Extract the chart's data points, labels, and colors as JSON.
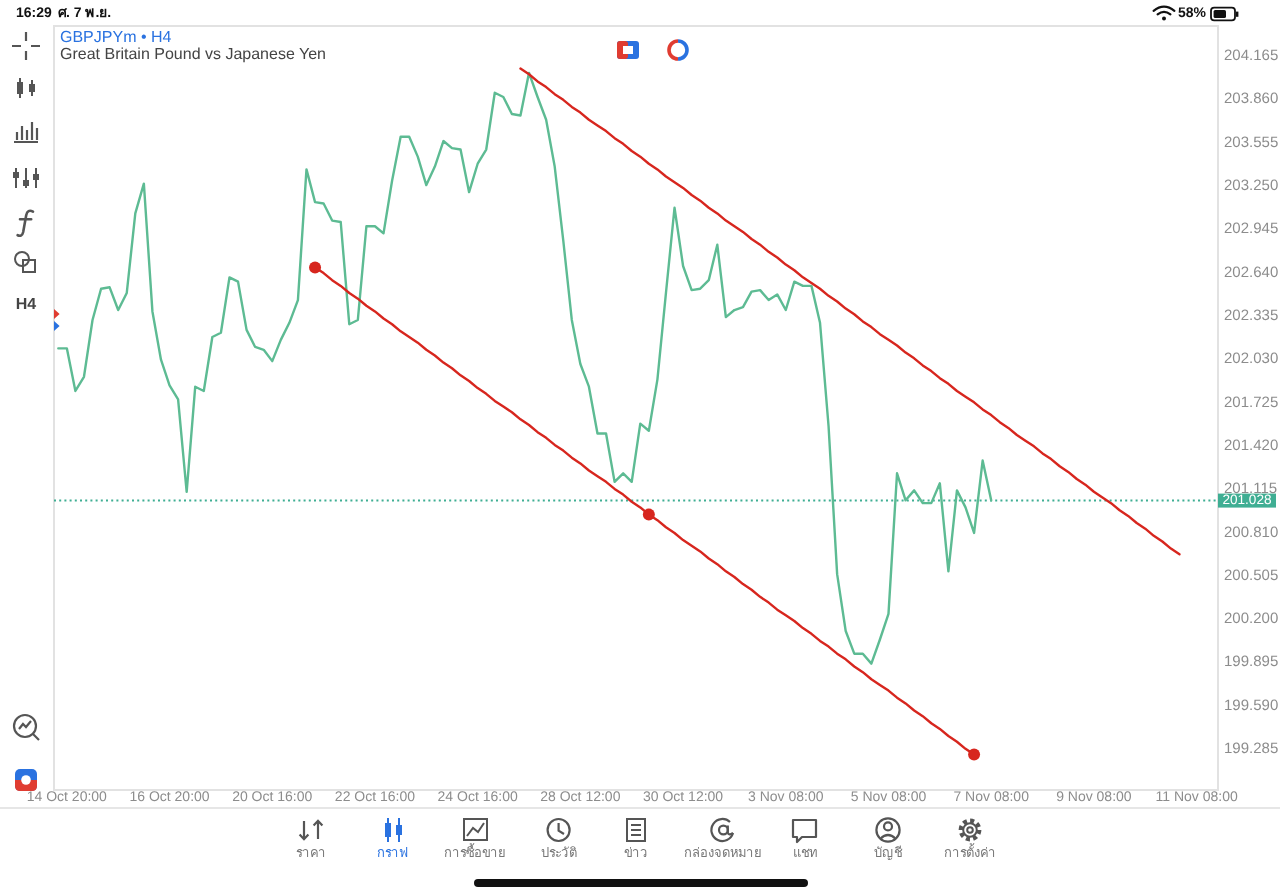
{
  "chart_data": {
    "type": "line",
    "title": "GBPJPYm • H4",
    "subtitle": "Great Britain Pound vs Japanese Yen",
    "categories": [
      null,
      "14 Oct 20:00",
      null,
      null,
      null,
      null,
      null,
      null,
      null,
      null,
      null,
      null,
      null,
      "16 Oct 20:00",
      null,
      null,
      null,
      null,
      null,
      null,
      null,
      null,
      null,
      null,
      null,
      "20 Oct 16:00",
      null,
      null,
      null,
      null,
      null,
      null,
      null,
      null,
      null,
      null,
      null,
      "22 Oct 16:00",
      null,
      null,
      null,
      null,
      null,
      null,
      null,
      null,
      null,
      null,
      null,
      "24 Oct 16:00",
      null,
      null,
      null,
      null,
      null,
      null,
      null,
      null,
      null,
      null,
      null,
      "28 Oct 12:00",
      null,
      null,
      null,
      null,
      null,
      null,
      null,
      null,
      null,
      null,
      null,
      "30 Oct 12:00",
      null,
      null,
      null,
      null,
      null,
      null,
      null,
      null,
      null,
      null,
      null,
      "3 Nov 08:00",
      null,
      null,
      null,
      null,
      null,
      null,
      null,
      null,
      null,
      null,
      null,
      "5 Nov 08:00",
      null,
      null,
      null,
      null,
      null,
      null,
      null,
      null,
      null,
      null,
      null,
      "7 Nov 08:00",
      null,
      null,
      null,
      null,
      null,
      null,
      null,
      null,
      null,
      null,
      null,
      "9 Nov 08:00",
      null,
      null,
      null,
      null,
      null,
      null,
      null,
      null,
      null,
      null,
      null,
      "11 Nov 08:00",
      null,
      null
    ],
    "series": [
      {
        "color": "#5dbb93",
        "values": [
          202.1,
          202.1,
          201.8,
          201.9,
          202.3,
          202.52,
          202.53,
          202.37,
          202.49,
          203.05,
          203.26,
          202.36,
          202.02,
          201.84,
          201.74,
          201.09,
          201.83,
          201.8,
          202.18,
          202.21,
          202.6,
          202.57,
          202.23,
          202.11,
          202.09,
          202.01,
          202.16,
          202.28,
          202.44,
          203.36,
          203.13,
          203.12,
          203.0,
          202.99,
          202.27,
          202.3,
          202.96,
          202.96,
          202.91,
          203.28,
          203.59,
          203.59,
          203.45,
          203.25,
          203.38,
          203.56,
          203.51,
          203.5,
          203.2,
          203.4,
          203.5,
          203.9,
          203.87,
          203.75,
          203.74,
          204.04,
          203.87,
          203.71,
          203.38,
          202.86,
          202.3,
          201.99,
          201.83,
          201.5,
          201.5,
          201.16,
          201.22,
          201.16,
          201.57,
          201.52,
          201.88,
          202.49,
          203.09,
          202.68,
          202.51,
          202.52,
          202.58,
          202.83,
          202.32,
          202.37,
          202.39,
          202.5,
          202.51,
          202.44,
          202.48,
          202.37,
          202.57,
          202.54,
          202.54,
          202.28,
          201.55,
          200.51,
          200.11,
          199.95,
          199.95,
          199.88,
          200.05,
          200.23,
          201.22,
          201.03,
          201.1,
          201.01,
          201.01,
          201.15,
          200.53,
          201.1,
          200.98,
          200.8,
          201.31,
          201.03,
          null,
          null,
          null,
          null,
          null,
          null,
          null,
          null,
          null,
          null,
          null,
          null,
          null,
          null,
          null,
          null,
          null,
          null,
          null,
          null,
          null,
          null,
          null,
          null,
          null,
          null
        ]
      },
      {
        "color": "#d7261e",
        "values": [
          null,
          null,
          null,
          null,
          null,
          null,
          null,
          null,
          null,
          null,
          null,
          null,
          null,
          null,
          null,
          null,
          null,
          null,
          null,
          null,
          null,
          null,
          null,
          null,
          null,
          null,
          null,
          null,
          null,
          null,
          null,
          null,
          null,
          null,
          null,
          null,
          null,
          null,
          null,
          null,
          null,
          null,
          null,
          null,
          null,
          null,
          null,
          null,
          null,
          null,
          null,
          null,
          null,
          null,
          204.07,
          204.03,
          203.98,
          203.94,
          203.89,
          203.85,
          203.8,
          203.76,
          203.71,
          203.67,
          203.63,
          203.58,
          203.54,
          203.49,
          203.45,
          203.4,
          203.36,
          203.31,
          203.27,
          203.23,
          203.18,
          203.14,
          203.09,
          203.05,
          203.0,
          202.96,
          202.92,
          202.87,
          202.83,
          202.78,
          202.74,
          202.69,
          202.65,
          202.6,
          202.56,
          202.52,
          202.47,
          202.43,
          202.38,
          202.34,
          202.29,
          202.25,
          202.2,
          202.16,
          202.12,
          202.07,
          202.03,
          201.98,
          201.94,
          201.89,
          201.85,
          201.8,
          201.76,
          201.72,
          201.67,
          201.63,
          201.58,
          201.54,
          201.49,
          201.45,
          201.41,
          201.36,
          201.32,
          201.27,
          201.23,
          201.18,
          201.14,
          201.09,
          201.05,
          201.01,
          200.96,
          200.92,
          200.87,
          200.83,
          200.78,
          200.74,
          200.69,
          200.65,
          null,
          null,
          null,
          null
        ]
      },
      {
        "color": "#d7261e",
        "values": [
          null,
          null,
          null,
          null,
          null,
          null,
          null,
          null,
          null,
          null,
          null,
          null,
          null,
          null,
          null,
          null,
          null,
          null,
          null,
          null,
          null,
          null,
          null,
          null,
          null,
          null,
          null,
          null,
          null,
          null,
          202.67,
          202.63,
          202.58,
          202.54,
          202.49,
          202.45,
          202.4,
          202.36,
          202.31,
          202.27,
          202.22,
          202.18,
          202.14,
          202.09,
          202.05,
          202.0,
          201.96,
          201.91,
          201.87,
          201.82,
          201.78,
          201.73,
          201.69,
          201.65,
          201.6,
          201.56,
          201.51,
          201.47,
          201.42,
          201.38,
          201.33,
          201.29,
          201.24,
          201.2,
          201.16,
          201.11,
          201.07,
          201.02,
          200.98,
          200.93,
          200.89,
          200.84,
          200.8,
          200.75,
          200.71,
          200.67,
          200.62,
          200.58,
          200.53,
          200.49,
          200.44,
          200.4,
          200.35,
          200.31,
          200.26,
          200.22,
          200.18,
          200.13,
          200.09,
          200.04,
          200.0,
          199.95,
          199.91,
          199.86,
          199.82,
          199.77,
          199.73,
          199.69,
          199.64,
          199.6,
          199.55,
          199.51,
          199.46,
          199.42,
          199.37,
          199.33,
          199.28,
          199.24,
          null,
          null,
          null,
          null,
          null,
          null,
          null,
          null,
          null,
          null,
          null,
          null,
          null,
          null,
          null,
          null,
          null,
          null,
          null,
          null,
          null,
          null,
          null,
          null,
          null,
          null,
          null,
          null
        ]
      },
      {
        "type": "scatter",
        "color": "#d7261e",
        "marker": "circle",
        "values": [
          null,
          null,
          null,
          null,
          null,
          null,
          null,
          null,
          null,
          null,
          null,
          null,
          null,
          null,
          null,
          null,
          null,
          null,
          null,
          null,
          null,
          null,
          null,
          null,
          null,
          null,
          null,
          null,
          null,
          null,
          202.67,
          null,
          null,
          null,
          null,
          null,
          null,
          null,
          null,
          null,
          null,
          null,
          null,
          null,
          null,
          null,
          null,
          null,
          null,
          null,
          null,
          null,
          null,
          null,
          null,
          null,
          null,
          null,
          null,
          null,
          null,
          null,
          null,
          null,
          null,
          null,
          null,
          null,
          null,
          200.93,
          null,
          null,
          null,
          null,
          null,
          null,
          null,
          null,
          null,
          null,
          null,
          null,
          null,
          null,
          null,
          null,
          null,
          null,
          null,
          null,
          null,
          null,
          null,
          null,
          null,
          null,
          null,
          null,
          null,
          null,
          null,
          null,
          null,
          null,
          null,
          null,
          null,
          199.24,
          null,
          null,
          null,
          null,
          null,
          null,
          null,
          null,
          null,
          null,
          null,
          null,
          null,
          null,
          null,
          null,
          null,
          null,
          null,
          null,
          null,
          null,
          null,
          null,
          null,
          null,
          null,
          null
        ]
      }
    ],
    "ylim": [
      198.99,
      204.37
    ],
    "yticks": [
      204.165,
      {
        "value": 203.86,
        "label": "203.860"
      },
      203.555,
      {
        "value": 203.25,
        "label": "203.250"
      },
      202.945,
      {
        "value": 202.64,
        "label": "202.640"
      },
      202.335,
      {
        "value": 202.03,
        "label": "202.030"
      },
      201.725,
      {
        "value": 201.42,
        "label": "201.420"
      },
      201.115,
      {
        "value": 200.81,
        "label": "200.810"
      },
      200.505,
      {
        "value": 200.2,
        "label": "200.200"
      },
      199.895,
      {
        "value": 199.59,
        "label": "199.590"
      },
      199.285
    ],
    "ref_lines": [
      {
        "axis": "y",
        "value": 201.028,
        "label": "201.028",
        "color": "#3fae93",
        "line_style": "dotted"
      }
    ],
    "marker": "none",
    "line_style": "solid",
    "annotations": [
      "16:29",
      "ศ. 7 พ.ย.",
      "58%",
      "H4",
      "ราคา",
      "กราฟ",
      "การซื้อขาย",
      "ประวัติ",
      "ข่าว",
      "กล่องจดหมาย",
      "แชท",
      "บัญชี",
      "การตั้งค่า"
    ]
  }
}
